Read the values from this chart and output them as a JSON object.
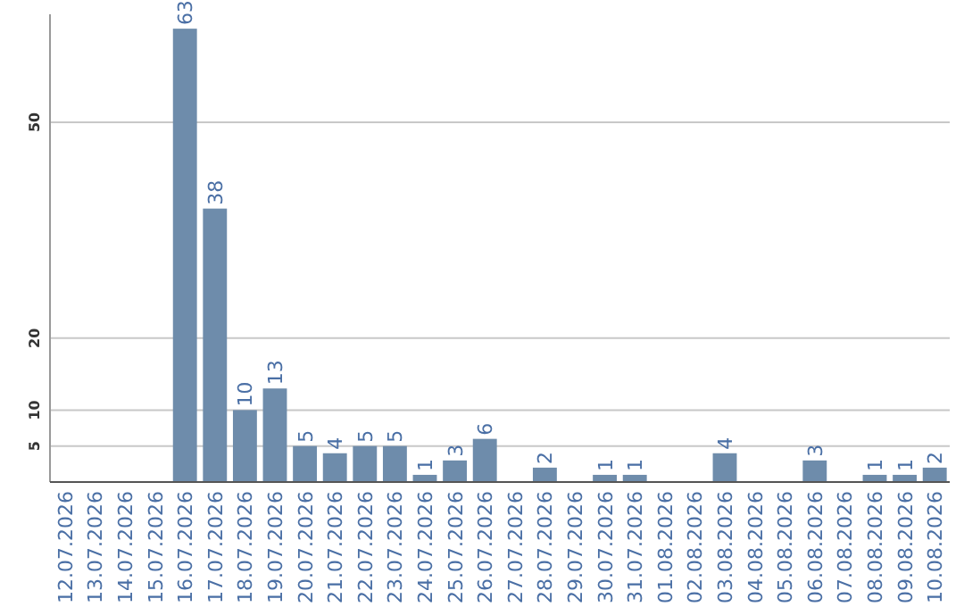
{
  "chart_data": {
    "type": "bar",
    "categories": [
      "12.07.2026",
      "13.07.2026",
      "14.07.2026",
      "15.07.2026",
      "16.07.2026",
      "17.07.2026",
      "18.07.2026",
      "19.07.2026",
      "20.07.2026",
      "21.07.2026",
      "22.07.2026",
      "23.07.2026",
      "24.07.2026",
      "25.07.2026",
      "26.07.2026",
      "27.07.2026",
      "28.07.2026",
      "29.07.2026",
      "30.07.2026",
      "31.07.2026",
      "01.08.2026",
      "02.08.2026",
      "03.08.2026",
      "04.08.2026",
      "05.08.2026",
      "06.08.2026",
      "07.08.2026",
      "08.08.2026",
      "09.08.2026",
      "10.08.2026"
    ],
    "values": [
      null,
      null,
      null,
      null,
      63,
      38,
      10,
      13,
      5,
      4,
      5,
      5,
      1,
      3,
      6,
      null,
      2,
      null,
      1,
      1,
      null,
      null,
      4,
      null,
      null,
      3,
      null,
      1,
      1,
      2
    ],
    "color": "#6e8cab",
    "ylim": [
      0,
      65
    ],
    "yticks": [
      5,
      10,
      20,
      50
    ],
    "grid": "y",
    "data_labels": true
  }
}
